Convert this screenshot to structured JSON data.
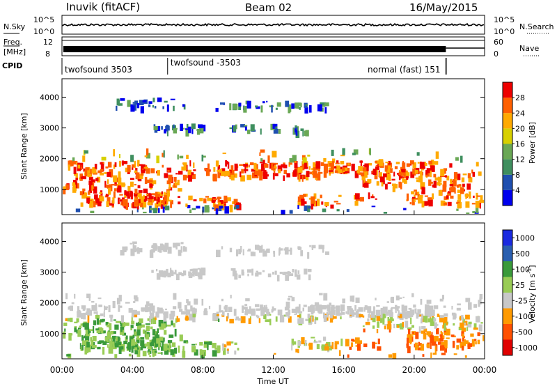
{
  "header": {
    "station": "Inuvik (fitACF)",
    "beam": "Beam 02",
    "date": "16/May/2015"
  },
  "nsky_panel": {
    "left_label": "N.Sky",
    "right_label": "N.Search",
    "left_ticks": [
      "10^5",
      "10^0"
    ],
    "right_ticks": [
      "10^5",
      "10^0"
    ]
  },
  "freq_panel": {
    "left_label_1": "Freq.",
    "left_label_2": "[MHz]",
    "right_label": "Nave",
    "left_ticks": [
      "12",
      "8"
    ],
    "right_ticks": [
      "60",
      "0"
    ]
  },
  "cpid_panel": {
    "label": "CPID",
    "segments": [
      {
        "name": "twofsound 3503",
        "start_hour": 0,
        "end_hour": 6
      },
      {
        "name": "twofsound -3503",
        "start_hour": 6,
        "end_hour": 21.8
      },
      {
        "name": "normal (fast) 151",
        "start_hour": 21.8,
        "end_hour": 24
      }
    ]
  },
  "x_axis": {
    "label": "Time UT",
    "ticks": [
      "00:00",
      "04:00",
      "08:00",
      "12:00",
      "16:00",
      "20:00",
      "00:00"
    ]
  },
  "colors": {
    "power_scale": [
      "#0000ee",
      "#1f4fb0",
      "#3f8f5f",
      "#6aa855",
      "#d8d000",
      "#ffaa00",
      "#ff6000",
      "#ee0000"
    ],
    "velocity_scale": [
      "#e00000",
      "#ff5000",
      "#ff9a00",
      "#c8c8c8",
      "#99cc55",
      "#3a9a3a",
      "#2a5fb0",
      "#1a2ae0"
    ]
  },
  "chart_data": [
    {
      "type": "heatmap",
      "name": "power",
      "ylabel": "Slant Range [km]",
      "xlabel": "",
      "y_ticks": [
        "1000",
        "2000",
        "3000",
        "4000"
      ],
      "ylim": [
        180,
        4600
      ],
      "xlim_hours": [
        0,
        24
      ],
      "colorbar_label": "Power [dB]",
      "colorbar_ticks": [
        "4",
        "8",
        "12",
        "16",
        "20",
        "24",
        "28"
      ],
      "colorbar_range": [
        0,
        32
      ]
    },
    {
      "type": "heatmap",
      "name": "velocity",
      "ylabel": "Slant Range [km]",
      "xlabel": "Time UT",
      "y_ticks": [
        "1000",
        "2000",
        "3000",
        "4000"
      ],
      "ylim": [
        180,
        4600
      ],
      "xlim_hours": [
        0,
        24
      ],
      "colorbar_label": "Velocity [m s",
      "colorbar_label_sup": "-1",
      "colorbar_label_end": "]",
      "colorbar_ticks": [
        "1000",
        "500",
        "100",
        "25",
        "-25",
        "-100",
        "-500",
        "-1000"
      ]
    }
  ]
}
